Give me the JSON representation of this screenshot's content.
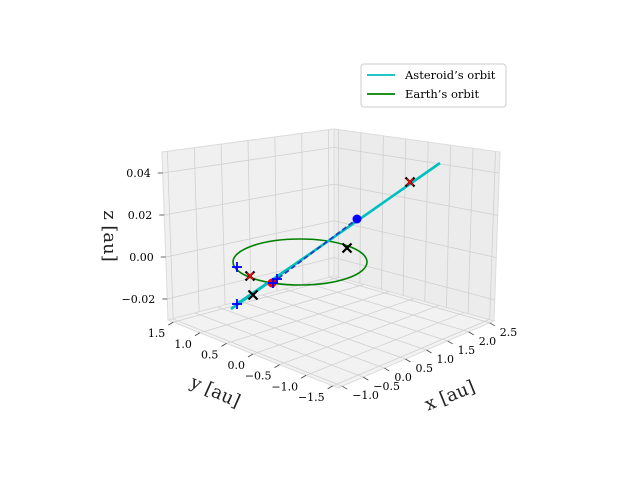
{
  "chart_data": {
    "type": "line",
    "projection": "3d",
    "title": "",
    "xlabel": "x [au]",
    "ylabel": "y [au]",
    "zlabel": "z [au]",
    "xlim": [
      -1.1,
      2.6
    ],
    "ylim": [
      -1.6,
      1.6
    ],
    "zlim": [
      -0.03,
      0.05
    ],
    "xticks": [
      "−1.0",
      "−0.5",
      "0.0",
      "0.5",
      "1.0",
      "1.5",
      "2.0",
      "2.5"
    ],
    "yticks": [
      "1.5",
      "1.0",
      "0.5",
      "0.0",
      "−0.5",
      "−1.0",
      "−1.5"
    ],
    "zticks": [
      "0.04",
      "0.02",
      "0.00",
      "−0.02"
    ],
    "grid": true,
    "legend_position": "top-right",
    "series": [
      {
        "name": "Asteroid’s orbit",
        "color": "#00bfbf",
        "note_points": [
          [
            2.0,
            -0.2,
            0.04
          ],
          [
            0.5,
            0.2,
            0.016
          ],
          [
            -0.6,
            0.7,
            -0.013
          ]
        ]
      },
      {
        "name": "Earth’s orbit",
        "color": "#008000",
        "radius": 1.0,
        "z": 0.0
      }
    ],
    "markers": {
      "black_x": [
        [
          1.0,
          0.0,
          0.0
        ],
        [
          -0.75,
          0.5,
          -0.012
        ],
        [
          -0.4,
          0.85,
          -0.02
        ],
        [
          1.7,
          -0.55,
          0.038
        ]
      ],
      "red_x": [
        [
          -0.75,
          0.5,
          -0.012
        ],
        [
          1.7,
          -0.55,
          0.038
        ]
      ],
      "blue_plus": [
        [
          -0.75,
          1.05,
          -0.007
        ],
        [
          -0.6,
          0.9,
          -0.026
        ],
        [
          -0.15,
          0.5,
          -0.016
        ]
      ],
      "blue_dot": [
        [
          0.85,
          -0.05,
          0.02
        ]
      ],
      "red_dot": [
        [
          -0.2,
          0.45,
          -0.017
        ]
      ]
    }
  },
  "legend": {
    "items": [
      {
        "label": "Asteroid’s orbit",
        "color": "#00bfbf"
      },
      {
        "label": "Earth’s orbit",
        "color": "#008000"
      }
    ]
  }
}
